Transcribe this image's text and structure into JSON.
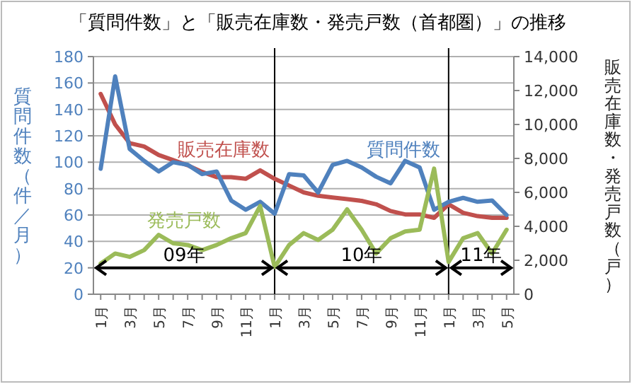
{
  "chart_data": {
    "type": "line",
    "title": "「質問件数」と「販売在庫数・発売戸数（首都圏）」の推移",
    "ylabel": "質問件数（件／月）",
    "y2label": "販売在庫数・発売戸数（戸）",
    "x": [
      "2009-01",
      "2009-02",
      "2009-03",
      "2009-04",
      "2009-05",
      "2009-06",
      "2009-07",
      "2009-08",
      "2009-09",
      "2009-10",
      "2009-11",
      "2009-12",
      "2010-01",
      "2010-02",
      "2010-03",
      "2010-04",
      "2010-05",
      "2010-06",
      "2010-07",
      "2010-08",
      "2010-09",
      "2010-10",
      "2010-11",
      "2010-12",
      "2011-01",
      "2011-02",
      "2011-03",
      "2011-04",
      "2011-05"
    ],
    "xlim": [
      "2008-12-16",
      "2011-05-16"
    ],
    "xticks": [
      {
        "value": "2009-01",
        "label": "1月"
      },
      {
        "value": "2009-02",
        "label": null
      },
      {
        "value": "2009-03",
        "label": "3月"
      },
      {
        "value": "2009-04",
        "label": null
      },
      {
        "value": "2009-05",
        "label": "5月"
      },
      {
        "value": "2009-06",
        "label": null
      },
      {
        "value": "2009-07",
        "label": "7月"
      },
      {
        "value": "2009-08",
        "label": null
      },
      {
        "value": "2009-09",
        "label": "9月"
      },
      {
        "value": "2009-10",
        "label": null
      },
      {
        "value": "2009-11",
        "label": "11月"
      },
      {
        "value": "2009-12",
        "label": null
      },
      {
        "value": "2010-01",
        "label": "1月"
      },
      {
        "value": "2010-02",
        "label": null
      },
      {
        "value": "2010-03",
        "label": "3月"
      },
      {
        "value": "2010-04",
        "label": null
      },
      {
        "value": "2010-05",
        "label": "5月"
      },
      {
        "value": "2010-06",
        "label": null
      },
      {
        "value": "2010-07",
        "label": "7月"
      },
      {
        "value": "2010-08",
        "label": null
      },
      {
        "value": "2010-09",
        "label": "9月"
      },
      {
        "value": "2010-10",
        "label": null
      },
      {
        "value": "2010-11",
        "label": "11月"
      },
      {
        "value": "2010-12",
        "label": null
      },
      {
        "value": "2011-01",
        "label": "1月"
      },
      {
        "value": "2011-02",
        "label": null
      },
      {
        "value": "2011-03",
        "label": "3月"
      },
      {
        "value": "2011-04",
        "label": null
      },
      {
        "value": "2011-05",
        "label": "5月"
      }
    ],
    "ylim": [
      0,
      180
    ],
    "yticks": [
      0,
      20,
      40,
      60,
      80,
      100,
      120,
      140,
      160,
      180
    ],
    "y2lim": [
      0,
      14000
    ],
    "y2ticks": [
      {
        "value": 0,
        "label": "0"
      },
      {
        "value": 2000,
        "label": "2,000"
      },
      {
        "value": 4000,
        "label": "4,000"
      },
      {
        "value": 6000,
        "label": "6,000"
      },
      {
        "value": 8000,
        "label": "8,000"
      },
      {
        "value": 10000,
        "label": "10,000"
      },
      {
        "value": 12000,
        "label": "12,000"
      },
      {
        "value": 14000,
        "label": "14,000"
      }
    ],
    "grid": "y",
    "marker": "none",
    "line_style": "solid",
    "series": [
      {
        "name": "販売在庫数",
        "axis": "y2",
        "color": "#c0504d",
        "values": [
          11800,
          10000,
          8900,
          8700,
          8200,
          7900,
          7600,
          7200,
          6900,
          6900,
          6800,
          7300,
          6800,
          6400,
          6000,
          5800,
          5700,
          5600,
          5500,
          5300,
          4900,
          4700,
          4700,
          4500,
          5300,
          4800,
          4600,
          4500,
          4500
        ]
      },
      {
        "name": "質問件数",
        "axis": "y",
        "color": "#4f81bd",
        "values": [
          95,
          165,
          110,
          101,
          93,
          100,
          98,
          91,
          93,
          71,
          64,
          70,
          61,
          91,
          90,
          77,
          98,
          101,
          96,
          89,
          84,
          101,
          96,
          64,
          70,
          73,
          70,
          71,
          60
        ]
      },
      {
        "name": "発売戸数",
        "axis": "y2",
        "color": "#9bbb59",
        "values": [
          1800,
          2400,
          2200,
          2600,
          3500,
          3000,
          2900,
          2600,
          2900,
          3300,
          3600,
          5200,
          1600,
          2900,
          3600,
          3200,
          3800,
          5000,
          3800,
          2400,
          3300,
          3700,
          3800,
          7400,
          1900,
          3300,
          3600,
          2400,
          3800
        ]
      }
    ],
    "ref_lines": [
      {
        "axis": "x",
        "value": "2010-01",
        "color": "#000000"
      },
      {
        "axis": "x",
        "value": "2011-01",
        "color": "#000000"
      }
    ],
    "annotations": [
      "09年",
      "10年",
      "11年"
    ]
  }
}
